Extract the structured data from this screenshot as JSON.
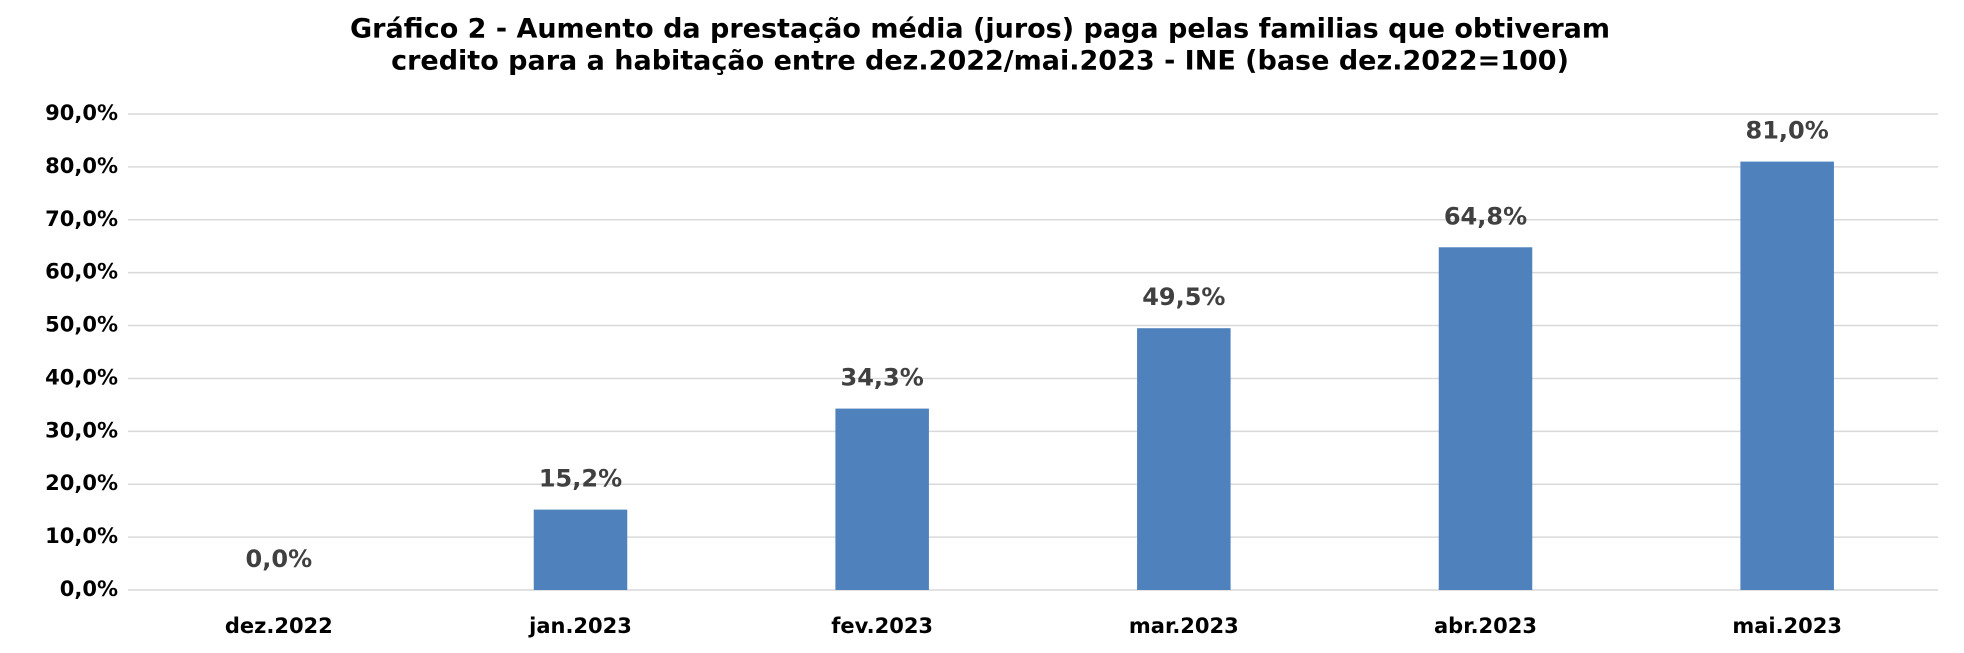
{
  "chart_data": {
    "type": "bar",
    "title": [
      "Gráfico 2 - Aumento da prestação média (juros) paga pelas familias que obtiveram",
      "credito para a habitação entre dez.2022/mai.2023 - INE (base dez.2022=100)"
    ],
    "categories": [
      "dez.2022",
      "jan.2023",
      "fev.2023",
      "mar.2023",
      "abr.2023",
      "mai.2023"
    ],
    "values": [
      0,
      15.2,
      34.3,
      49.5,
      64.8,
      81.0
    ],
    "value_labels": [
      "0,0%",
      "15,2%",
      "34,3%",
      "49,5%",
      "64,8%",
      "81,0%"
    ],
    "color": "#4f81bd",
    "ylim": [
      0,
      90
    ],
    "yticks": [
      {
        "value": 0,
        "label": "0,0%"
      },
      {
        "value": 10,
        "label": "10,0%"
      },
      {
        "value": 20,
        "label": "20,0%"
      },
      {
        "value": 30,
        "label": "30,0%"
      },
      {
        "value": 40,
        "label": "40,0%"
      },
      {
        "value": 50,
        "label": "50,0%"
      },
      {
        "value": 60,
        "label": "60,0%"
      },
      {
        "value": 70,
        "label": "70,0%"
      },
      {
        "value": 80,
        "label": "80,0%"
      },
      {
        "value": 90,
        "label": "90,0%"
      }
    ],
    "grid": true
  }
}
